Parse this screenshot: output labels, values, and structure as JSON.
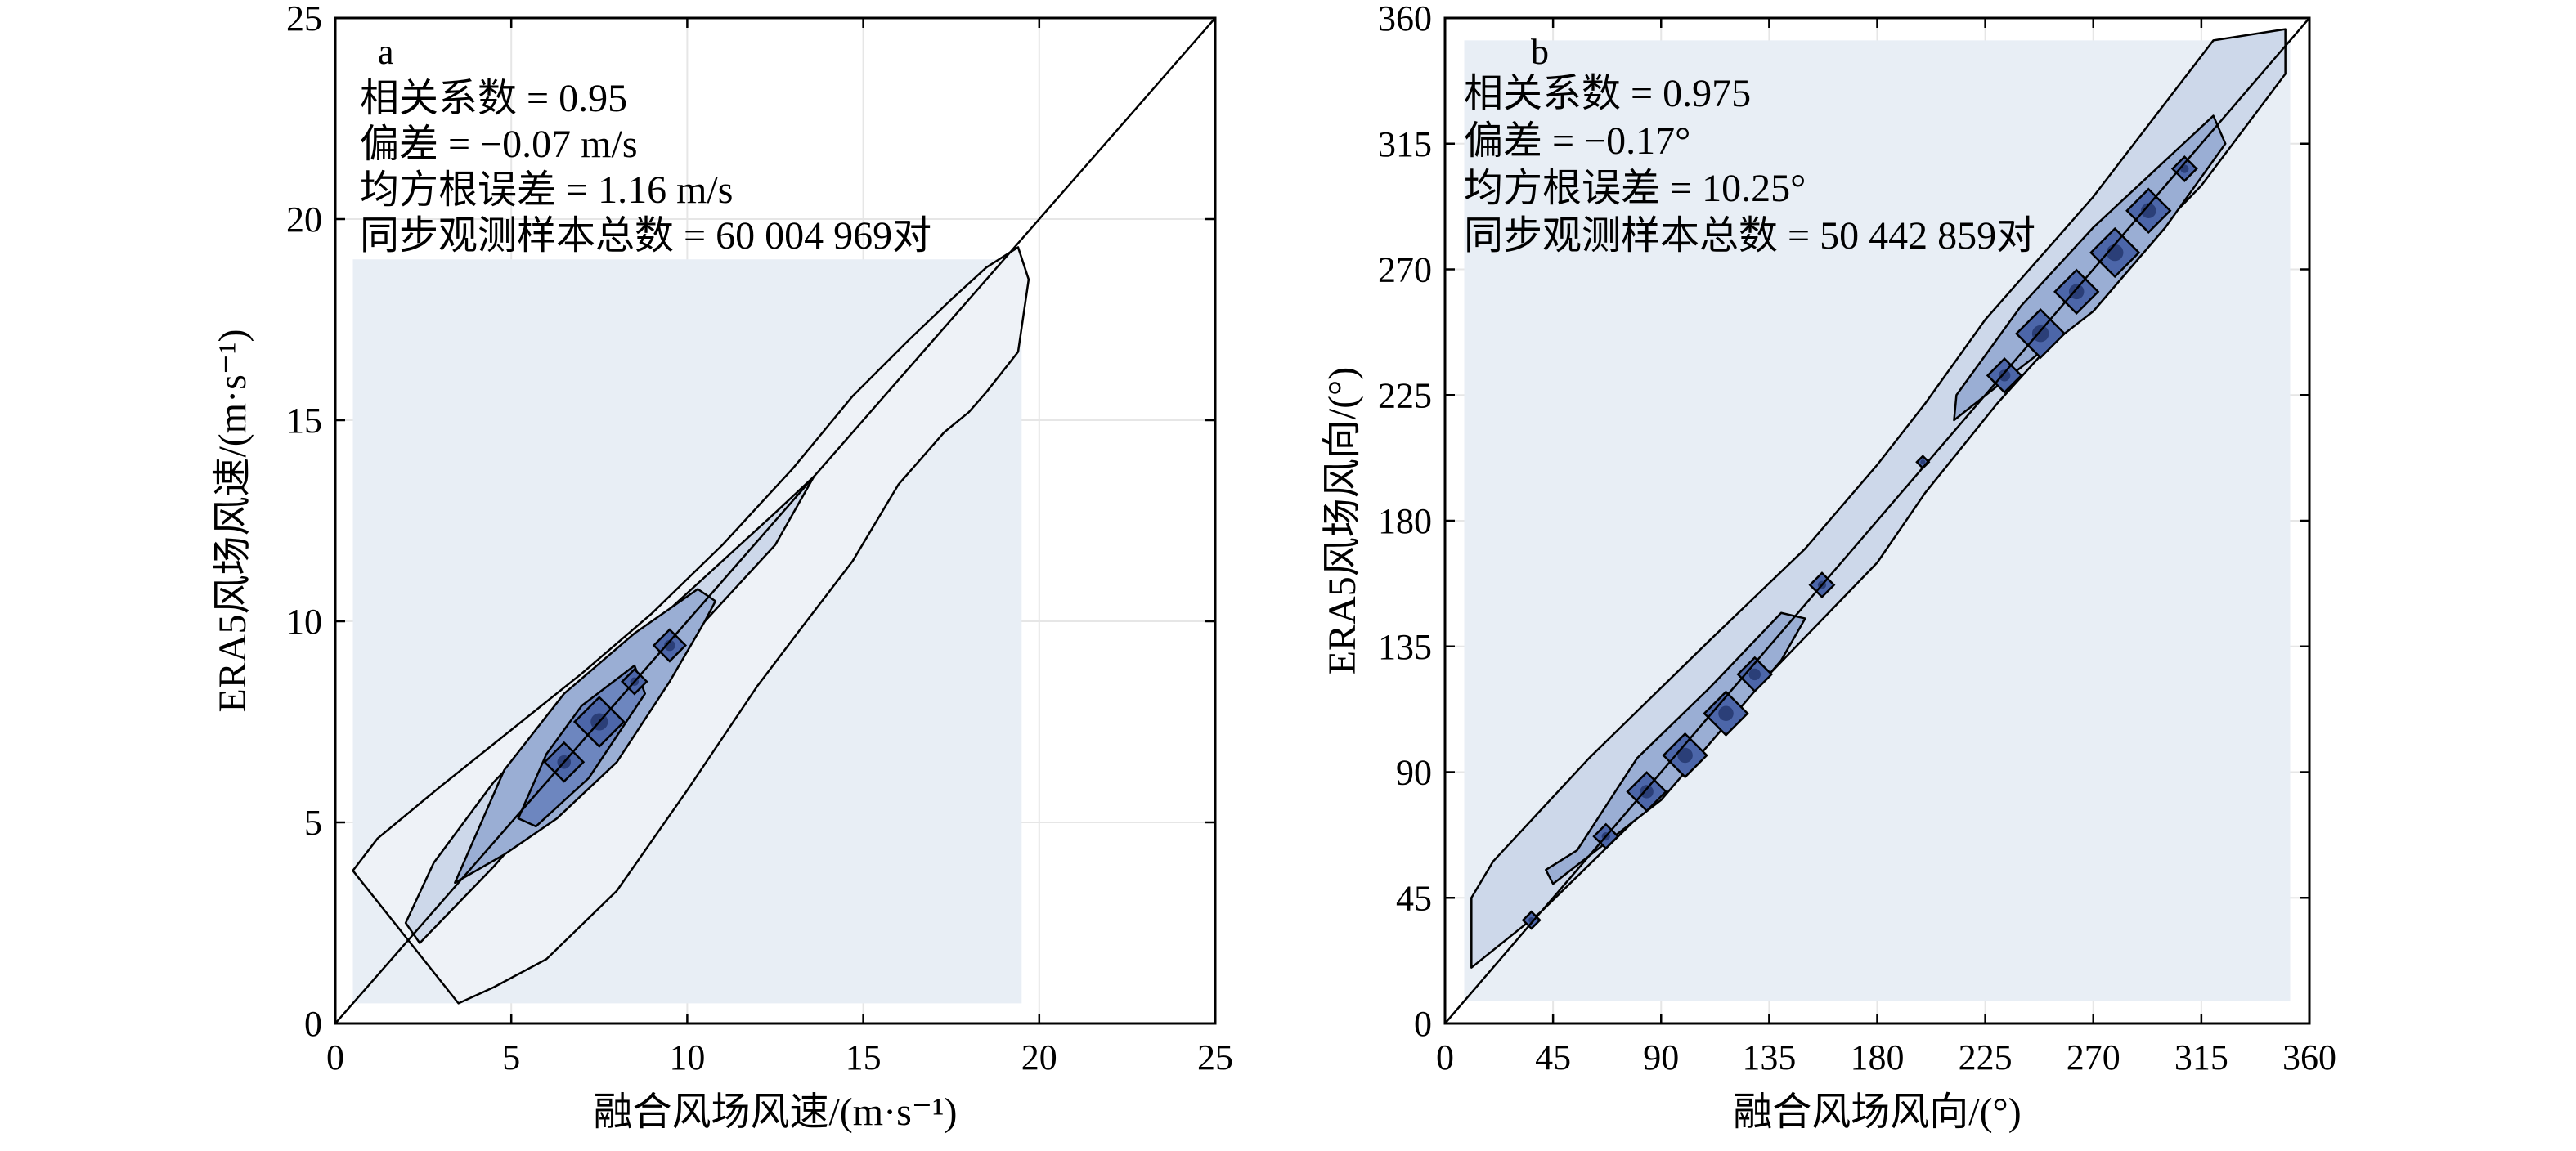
{
  "chart_data": [
    {
      "type": "contour",
      "panel": "a",
      "xlabel": "融合风场风速/(m·s⁻¹)",
      "ylabel": "ERA5风场风速/(m·s⁻¹)",
      "xlim": [
        0,
        25
      ],
      "ylim": [
        0,
        25
      ],
      "x_ticks": [
        "0",
        "5",
        "10",
        "15",
        "20",
        "25"
      ],
      "y_ticks": [
        "0",
        "5",
        "10",
        "15",
        "20",
        "25"
      ],
      "grid": true,
      "reference_line": "y = x",
      "stats": [
        "相关系数 = 0.95",
        "偏差 = −0.07 m/s",
        "均方根误差 = 1.16 m/s",
        "同步观测样本总数 = 60 004 969对"
      ],
      "contour_levels": [
        {
          "fill": "#e8eef5",
          "points": [
            [
              0.5,
              0.5
            ],
            [
              19.5,
              0.5
            ],
            [
              19.5,
              19.0
            ],
            [
              0.5,
              19.0
            ]
          ]
        },
        {
          "fill": "#eef2f7",
          "points": [
            [
              0.5,
              3.8
            ],
            [
              1.2,
              4.6
            ],
            [
              3,
              5.9
            ],
            [
              5,
              7.3
            ],
            [
              7,
              8.7
            ],
            [
              9,
              10.2
            ],
            [
              11,
              11.9
            ],
            [
              13,
              13.8
            ],
            [
              14.7,
              15.6
            ],
            [
              16.3,
              17.0
            ],
            [
              17.5,
              18.0
            ],
            [
              18.5,
              18.8
            ],
            [
              19.4,
              19.3
            ],
            [
              19.7,
              18.5
            ],
            [
              19.4,
              16.7
            ],
            [
              18.5,
              15.7
            ],
            [
              18,
              15.2
            ],
            [
              17.3,
              14.7
            ],
            [
              16,
              13.4
            ],
            [
              14.7,
              11.5
            ],
            [
              13.3,
              9.9
            ],
            [
              12,
              8.4
            ],
            [
              10,
              5.8
            ],
            [
              8,
              3.3
            ],
            [
              6,
              1.6
            ],
            [
              4.5,
              0.9
            ],
            [
              3.5,
              0.5
            ]
          ]
        },
        {
          "fill": "#cdd8ea",
          "points": [
            [
              2.0,
              2.5
            ],
            [
              2.4,
              2.0
            ],
            [
              4.5,
              3.9
            ],
            [
              6.5,
              5.9
            ],
            [
              8.5,
              8.0
            ],
            [
              10.5,
              10.0
            ],
            [
              12.5,
              11.9
            ],
            [
              13.6,
              13.6
            ],
            [
              12.5,
              12.7
            ],
            [
              10.5,
              11.1
            ],
            [
              8.5,
              9.5
            ],
            [
              6.5,
              7.8
            ],
            [
              4.5,
              6.0
            ],
            [
              2.8,
              4.0
            ]
          ]
        },
        {
          "fill": "#9aaed4",
          "points": [
            [
              3.4,
              3.5
            ],
            [
              4.8,
              4.2
            ],
            [
              6.3,
              5.1
            ],
            [
              8.0,
              6.5
            ],
            [
              9.5,
              8.5
            ],
            [
              10.5,
              10.0
            ],
            [
              10.8,
              10.5
            ],
            [
              10.3,
              10.8
            ],
            [
              8.5,
              9.7
            ],
            [
              6.5,
              8.2
            ],
            [
              4.8,
              6.3
            ]
          ]
        },
        {
          "fill": "#6d86bf",
          "points": [
            [
              5.2,
              5.1
            ],
            [
              5.7,
              4.9
            ],
            [
              7.2,
              6.1
            ],
            [
              8.8,
              8.2
            ],
            [
              8.5,
              8.9
            ],
            [
              7.0,
              7.9
            ],
            [
              6.0,
              6.7
            ]
          ]
        },
        {
          "fill": "#4c66a9",
          "rhombi": [
            [
              6.5,
              6.5,
              0.55
            ],
            [
              7.5,
              7.5,
              0.7
            ],
            [
              8.5,
              8.5,
              0.35
            ],
            [
              9.5,
              9.4,
              0.45
            ]
          ]
        }
      ]
    },
    {
      "type": "contour",
      "panel": "b",
      "xlabel": "融合风场风向/(°)",
      "ylabel": "ERA5风场风向/(°)",
      "xlim": [
        0,
        360
      ],
      "ylim": [
        0,
        360
      ],
      "x_ticks": [
        "0",
        "45",
        "90",
        "135",
        "180",
        "225",
        "270",
        "315",
        "360"
      ],
      "y_ticks": [
        "0",
        "45",
        "90",
        "135",
        "180",
        "225",
        "270",
        "315",
        "360"
      ],
      "grid": true,
      "reference_line": "y = x",
      "stats": [
        "相关系数 = 0.975",
        "偏差 = −0.17°",
        "均方根误差 = 10.25°",
        "同步观测样本总数 = 50 442 859对"
      ],
      "contour_levels": [
        {
          "fill": "#e8eef5",
          "points": [
            [
              8,
              8
            ],
            [
              352,
              8
            ],
            [
              352,
              352
            ],
            [
              8,
              352
            ]
          ]
        },
        {
          "fill": "#cdd8ea",
          "points": [
            [
              11,
              20
            ],
            [
              40,
              40
            ],
            [
              90,
              82
            ],
            [
              135,
              125
            ],
            [
              180,
              165
            ],
            [
              200,
              190
            ],
            [
              230,
              222
            ],
            [
              270,
              260
            ],
            [
              315,
              300
            ],
            [
              350,
              340
            ],
            [
              350,
              356
            ],
            [
              320,
              352
            ],
            [
              270,
              296
            ],
            [
              225,
              252
            ],
            [
              200,
              222
            ],
            [
              180,
              200
            ],
            [
              150,
              170
            ],
            [
              110,
              137
            ],
            [
              60,
              95
            ],
            [
              20,
              58
            ],
            [
              11,
              45
            ]
          ]
        },
        {
          "fill": "#9aaed4",
          "points": [
            [
              45,
              50
            ],
            [
              90,
              80
            ],
            [
              120,
              110
            ],
            [
              140,
              130
            ],
            [
              150,
              145
            ],
            [
              140,
              147
            ],
            [
              110,
              120
            ],
            [
              80,
              95
            ],
            [
              55,
              62
            ],
            [
              42,
              55
            ]
          ]
        },
        {
          "fill": "#9aaed4",
          "points": [
            [
              212,
              216
            ],
            [
              240,
              235
            ],
            [
              270,
              255
            ],
            [
              300,
              285
            ],
            [
              325,
              315
            ],
            [
              320,
              325
            ],
            [
              295,
              305
            ],
            [
              270,
              285
            ],
            [
              240,
              257
            ],
            [
              213,
              225
            ]
          ]
        },
        {
          "fill": "#4c66a9",
          "rhombi": [
            [
              36,
              37,
              3.5
            ],
            [
              67,
              67,
              5
            ],
            [
              84,
              83,
              8
            ],
            [
              100,
              96,
              9
            ],
            [
              117,
              111,
              9
            ],
            [
              129,
              125,
              7
            ],
            [
              157,
              157,
              5
            ],
            [
              199,
              201,
              2.5
            ],
            [
              233,
              232,
              7
            ],
            [
              248,
              247,
              10
            ],
            [
              263,
              262,
              9
            ],
            [
              279,
              276,
              10
            ],
            [
              293,
              291,
              9
            ],
            [
              308,
              306,
              5
            ]
          ]
        }
      ]
    }
  ]
}
